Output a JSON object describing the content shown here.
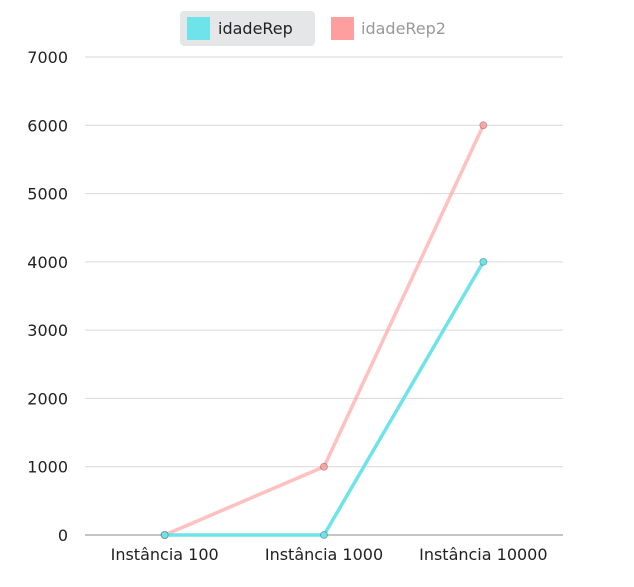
{
  "chart_data": {
    "type": "line",
    "categories": [
      "Instância 100",
      "Instância 1000",
      "Instância 10000"
    ],
    "series": [
      {
        "name": "idadeRep",
        "values": [
          0,
          0,
          4000
        ],
        "color": "#6EE3EA",
        "legend_active": true
      },
      {
        "name": "idadeRep2",
        "values": [
          0,
          1000,
          6000
        ],
        "color": "#FF9E9E",
        "legend_active": false
      }
    ],
    "title": "",
    "xlabel": "",
    "ylabel": "",
    "ylim": [
      0,
      7000
    ],
    "yticks": [
      0,
      1000,
      2000,
      3000,
      4000,
      5000,
      6000,
      7000
    ],
    "grid": true,
    "legend_position": "top-center"
  },
  "colors": {
    "grid": "#D9D9D9",
    "axis": "#888888",
    "tick_text": "#222222",
    "legend_active_bg": "#E4E6E8",
    "legend_inactive_text": "#999999",
    "legend_active_text": "#222222"
  }
}
